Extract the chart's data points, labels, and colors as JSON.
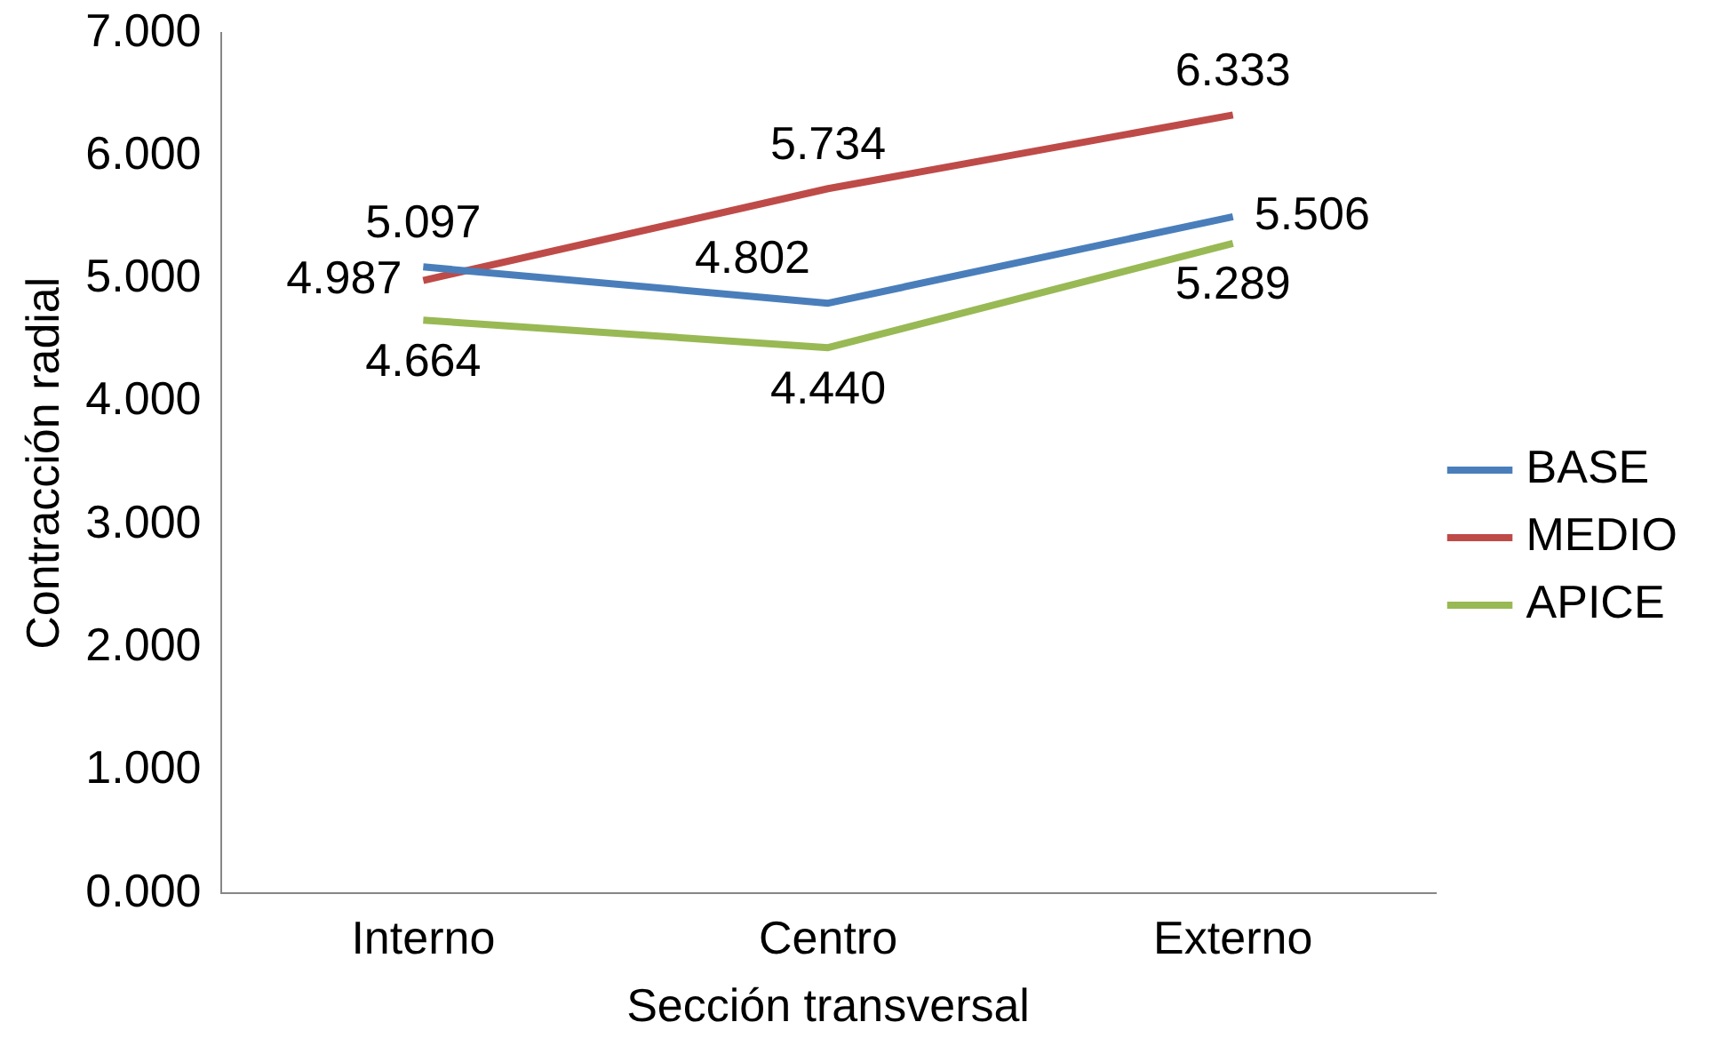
{
  "chart_data": {
    "type": "line",
    "xlabel": "Sección transversal",
    "ylabel": "Contracción radial",
    "categories": [
      "Interno",
      "Centro",
      "Externo"
    ],
    "series": [
      {
        "name": "BASE",
        "color": "#4a7ebb",
        "values": [
          5.097,
          4.802,
          5.506
        ],
        "value_labels": [
          "5.097",
          "4.802",
          "5.506"
        ]
      },
      {
        "name": "MEDIO",
        "color": "#be4b48",
        "values": [
          4.987,
          5.734,
          6.333
        ],
        "value_labels": [
          "4.987",
          "5.734",
          "6.333"
        ]
      },
      {
        "name": "APICE",
        "color": "#98b954",
        "values": [
          4.664,
          4.44,
          5.289
        ],
        "value_labels": [
          "4.664",
          "4.440",
          "5.289"
        ]
      }
    ],
    "ylim": [
      0,
      7
    ],
    "yticks": [
      {
        "value": 0,
        "label": "0.000"
      },
      {
        "value": 1,
        "label": "1.000"
      },
      {
        "value": 2,
        "label": "2.000"
      },
      {
        "value": 3,
        "label": "3.000"
      },
      {
        "value": 4,
        "label": "4.000"
      },
      {
        "value": 5,
        "label": "5.000"
      },
      {
        "value": 6,
        "label": "6.000"
      },
      {
        "value": 7,
        "label": "7.000"
      }
    ],
    "grid": false,
    "legend": "right",
    "marker": "none",
    "line_style": "solid"
  }
}
